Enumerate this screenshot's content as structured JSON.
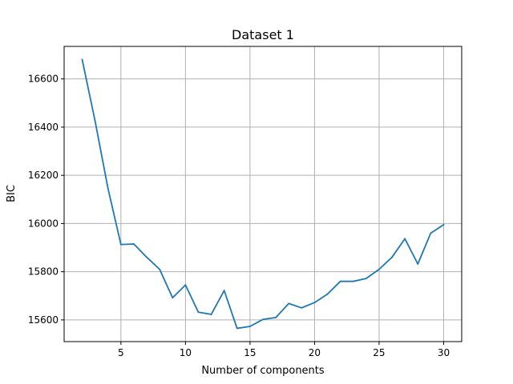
{
  "chart_data": {
    "type": "line",
    "title": "Dataset 1",
    "xlabel": "Number of components",
    "ylabel": "BIC",
    "xlim": [
      0.6,
      31.4
    ],
    "ylim": [
      15510,
      16735
    ],
    "xticks": [
      5,
      10,
      15,
      20,
      25,
      30
    ],
    "yticks": [
      15600,
      15800,
      16000,
      16200,
      16400,
      16600
    ],
    "grid": true,
    "line_color": "#1f77b4",
    "series": [
      {
        "x": [
          2,
          3,
          4,
          5,
          6,
          7,
          8,
          9,
          10,
          11,
          12,
          13,
          14,
          15,
          16,
          17,
          18,
          19,
          20,
          21,
          22,
          23,
          24,
          25,
          26,
          27,
          28,
          29,
          30
        ],
        "values": [
          16680,
          16425,
          16145,
          15913,
          15915,
          15860,
          15810,
          15692,
          15745,
          15632,
          15623,
          15722,
          15565,
          15573,
          15602,
          15610,
          15668,
          15650,
          15672,
          15707,
          15760,
          15760,
          15772,
          15810,
          15860,
          15937,
          15832,
          15960,
          15995
        ]
      }
    ]
  }
}
